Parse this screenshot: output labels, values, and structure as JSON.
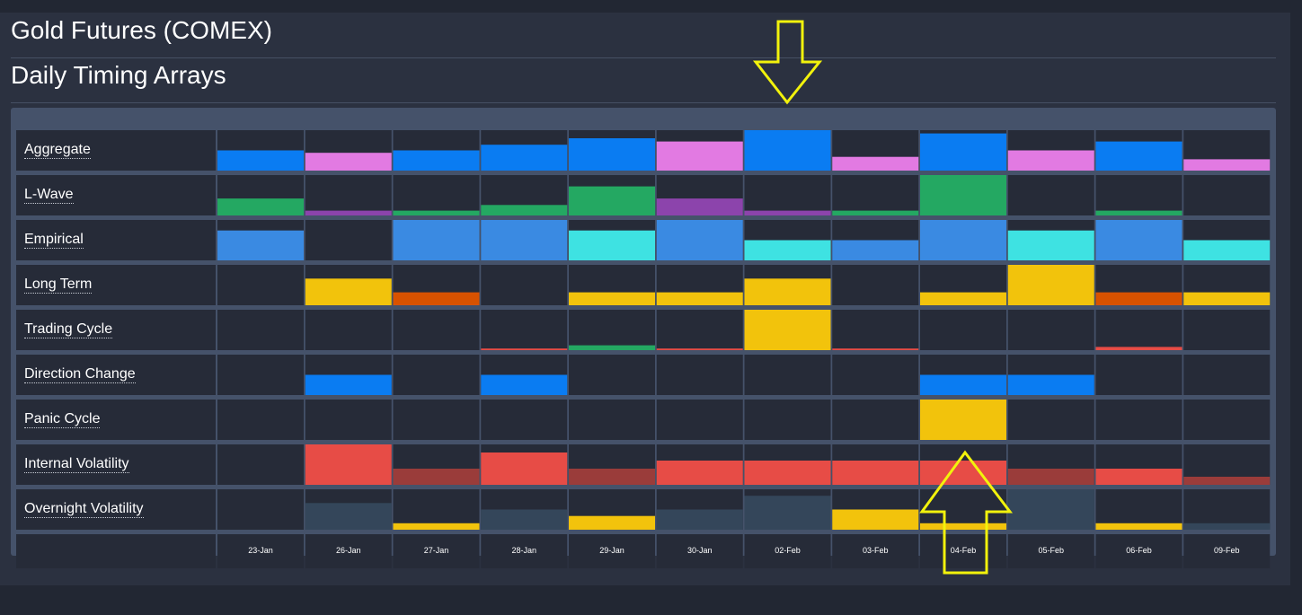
{
  "header": {
    "title": "Gold Futures (COMEX)",
    "subtitle": "Daily Timing Arrays"
  },
  "colors": {
    "blue": "#0a7cf2",
    "pink": "#e27ae2",
    "green": "#24a862",
    "purple": "#8c44ac",
    "empirical_blue": "#3a8ae2",
    "cyan": "#3ee2e2",
    "yellow": "#f2c30c",
    "orange": "#d85200",
    "red": "#e74c46",
    "dark_red": "#9a3c3a",
    "slate": "#34465a"
  },
  "annotations": [
    {
      "name": "down-arrow-annotation",
      "icon": "yellow-down-arrow",
      "points_to": "02-Feb"
    },
    {
      "name": "up-arrow-annotation",
      "icon": "yellow-up-arrow",
      "points_to": "04-Feb"
    }
  ],
  "chart_data": {
    "type": "heatmap",
    "title": "Daily Timing Arrays",
    "categories": [
      "23-Jan",
      "26-Jan",
      "27-Jan",
      "28-Jan",
      "29-Jan",
      "30-Jan",
      "02-Feb",
      "03-Feb",
      "04-Feb",
      "05-Feb",
      "06-Feb",
      "09-Feb"
    ],
    "value_range": [
      0,
      1
    ],
    "series": [
      {
        "name": "Aggregate",
        "values": [
          0.5,
          0.44,
          0.5,
          0.64,
          0.8,
          0.72,
          1.0,
          0.34,
          0.92,
          0.5,
          0.72,
          0.28
        ],
        "colors": [
          "blue",
          "pink",
          "blue",
          "blue",
          "blue",
          "pink",
          "blue",
          "pink",
          "blue",
          "pink",
          "blue",
          "pink"
        ]
      },
      {
        "name": "L-Wave",
        "values": [
          0.42,
          0.12,
          0.12,
          0.26,
          0.72,
          0.42,
          0.12,
          0.12,
          1.0,
          0,
          0.12,
          0
        ],
        "colors": [
          "green",
          "purple",
          "green",
          "green",
          "green",
          "purple",
          "purple",
          "green",
          "green",
          null,
          "green",
          null
        ]
      },
      {
        "name": "Empirical",
        "values": [
          0.74,
          0,
          1.0,
          1.0,
          0.74,
          1.0,
          0.5,
          0.5,
          1.0,
          0.74,
          1.0,
          0.5
        ],
        "colors": [
          "empirical_blue",
          null,
          "empirical_blue",
          "empirical_blue",
          "cyan",
          "empirical_blue",
          "cyan",
          "empirical_blue",
          "empirical_blue",
          "cyan",
          "empirical_blue",
          "cyan"
        ]
      },
      {
        "name": "Long Term",
        "values": [
          0,
          0.66,
          0.32,
          0,
          0.32,
          0.32,
          0.66,
          0,
          0.32,
          1.0,
          0.32,
          0.32
        ],
        "colors": [
          null,
          "yellow",
          "orange",
          null,
          "yellow",
          "yellow",
          "yellow",
          null,
          "yellow",
          "yellow",
          "orange",
          "yellow"
        ]
      },
      {
        "name": "Trading Cycle",
        "values": [
          0,
          0,
          0,
          0.04,
          0.12,
          0.04,
          1.0,
          0.04,
          0,
          0,
          0.08,
          0
        ],
        "colors": [
          null,
          null,
          null,
          "red",
          "green",
          "red",
          "yellow",
          "red",
          null,
          null,
          "red",
          null
        ]
      },
      {
        "name": "Direction Change",
        "values": [
          0,
          0.5,
          0,
          0.5,
          0,
          0,
          0,
          0,
          0.5,
          0.5,
          0,
          0
        ],
        "colors": [
          null,
          "blue",
          null,
          "blue",
          null,
          null,
          null,
          null,
          "blue",
          "blue",
          null,
          null
        ]
      },
      {
        "name": "Panic Cycle",
        "values": [
          0,
          0,
          0,
          0,
          0,
          0,
          0,
          0,
          1.0,
          0,
          0,
          0
        ],
        "colors": [
          null,
          null,
          null,
          null,
          null,
          null,
          null,
          null,
          "yellow",
          null,
          null,
          null
        ]
      },
      {
        "name": "Internal Volatility",
        "values": [
          0,
          1.0,
          0.4,
          0.8,
          0.4,
          0.6,
          0.6,
          0.6,
          0.6,
          0.4,
          0.4,
          0.2
        ],
        "colors": [
          null,
          "red",
          "dark_red",
          "red",
          "dark_red",
          "red",
          "red",
          "red",
          "red",
          "dark_red",
          "red",
          "dark_red"
        ]
      },
      {
        "name": "Overnight Volatility",
        "values": [
          0,
          0.66,
          0.16,
          0.5,
          0.34,
          0.5,
          0.84,
          0.5,
          0.16,
          1.0,
          0.16,
          0.16
        ],
        "colors": [
          null,
          "slate",
          "yellow",
          "slate",
          "yellow",
          "slate",
          "slate",
          "yellow",
          "yellow",
          "slate",
          "yellow",
          "slate"
        ]
      }
    ]
  }
}
